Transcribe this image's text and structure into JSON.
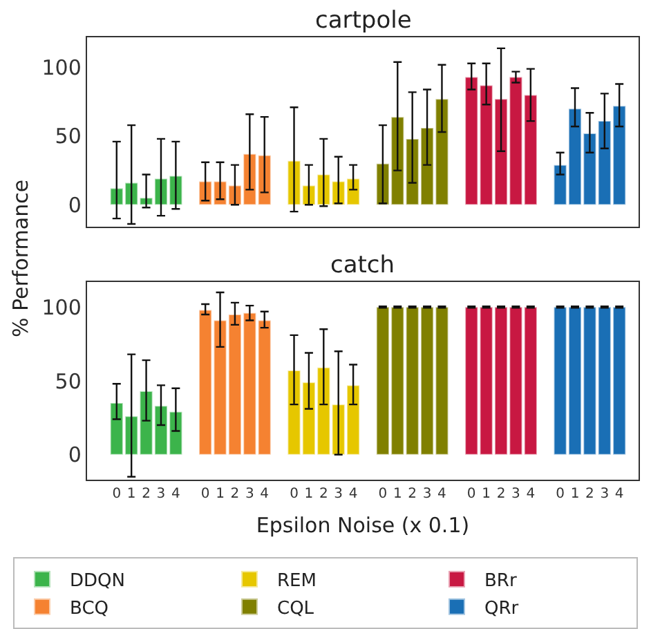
{
  "chart_data": [
    {
      "type": "bar",
      "title": "cartpole",
      "ylabel": "% Performance",
      "tick_labels": "y",
      "ylim": [
        -16,
        122
      ],
      "yticks": [
        0,
        50,
        100
      ],
      "categories": [
        "0",
        "1",
        "2",
        "3",
        "4",
        null,
        "0",
        "1",
        "2",
        "3",
        "4",
        null,
        "0",
        "1",
        "2",
        "3",
        "4",
        null,
        "0",
        "1",
        "2",
        "3",
        "4",
        null,
        "0",
        "1",
        "2",
        "3",
        "4",
        null,
        "0",
        "1",
        "2",
        "3",
        "4"
      ],
      "series": [
        {
          "color": "#3cb44b",
          "values": [
            12,
            16,
            5,
            19,
            21,
            null,
            null,
            null,
            null,
            null,
            null,
            null,
            null,
            null,
            null,
            null,
            null,
            null,
            null,
            null,
            null,
            null,
            null,
            null,
            null,
            null,
            null,
            null,
            null,
            null,
            null,
            null,
            null,
            null,
            null
          ],
          "errors": [
            [
              -10,
              46
            ],
            [
              -14,
              58
            ],
            [
              -2,
              22
            ],
            [
              -8,
              48
            ],
            [
              -3,
              46
            ],
            null,
            null,
            null,
            null,
            null,
            null,
            null,
            null,
            null,
            null,
            null,
            null,
            null,
            null,
            null,
            null,
            null,
            null,
            null,
            null,
            null,
            null,
            null,
            null,
            null,
            null,
            null,
            null,
            null,
            null
          ]
        },
        {
          "color": "#f58231",
          "values": [
            null,
            null,
            null,
            null,
            null,
            null,
            17,
            17,
            14,
            37,
            36,
            null,
            null,
            null,
            null,
            null,
            null,
            null,
            null,
            null,
            null,
            null,
            null,
            null,
            null,
            null,
            null,
            null,
            null,
            null,
            null,
            null,
            null,
            null,
            null
          ],
          "errors": [
            null,
            null,
            null,
            null,
            null,
            null,
            [
              3,
              31
            ],
            [
              4,
              31
            ],
            [
              0,
              29
            ],
            [
              11,
              66
            ],
            [
              9,
              64
            ],
            null,
            null,
            null,
            null,
            null,
            null,
            null,
            null,
            null,
            null,
            null,
            null,
            null,
            null,
            null,
            null,
            null,
            null,
            null,
            null,
            null,
            null,
            null,
            null
          ]
        },
        {
          "color": "#e6c700",
          "values": [
            null,
            null,
            null,
            null,
            null,
            null,
            null,
            null,
            null,
            null,
            null,
            null,
            32,
            14,
            22,
            17,
            19,
            null,
            null,
            null,
            null,
            null,
            null,
            null,
            null,
            null,
            null,
            null,
            null,
            null,
            null,
            null,
            null,
            null,
            null
          ],
          "errors": [
            null,
            null,
            null,
            null,
            null,
            null,
            null,
            null,
            null,
            null,
            null,
            null,
            [
              -5,
              71
            ],
            [
              0,
              29
            ],
            [
              -1,
              48
            ],
            [
              1,
              35
            ],
            [
              11,
              29
            ],
            null,
            null,
            null,
            null,
            null,
            null,
            null,
            null,
            null,
            null,
            null,
            null,
            null,
            null,
            null,
            null,
            null,
            null
          ]
        },
        {
          "color": "#808000",
          "values": [
            null,
            null,
            null,
            null,
            null,
            null,
            null,
            null,
            null,
            null,
            null,
            null,
            null,
            null,
            null,
            null,
            null,
            null,
            30,
            64,
            48,
            56,
            77,
            null,
            null,
            null,
            null,
            null,
            null,
            null,
            null,
            null,
            null,
            null,
            null
          ],
          "errors": [
            null,
            null,
            null,
            null,
            null,
            null,
            null,
            null,
            null,
            null,
            null,
            null,
            null,
            null,
            null,
            null,
            null,
            null,
            [
              1,
              58
            ],
            [
              25,
              104
            ],
            [
              16,
              82
            ],
            [
              29,
              84
            ],
            [
              53,
              102
            ],
            null,
            null,
            null,
            null,
            null,
            null,
            null,
            null,
            null,
            null,
            null,
            null
          ]
        },
        {
          "color": "#c81842",
          "values": [
            null,
            null,
            null,
            null,
            null,
            null,
            null,
            null,
            null,
            null,
            null,
            null,
            null,
            null,
            null,
            null,
            null,
            null,
            null,
            null,
            null,
            null,
            null,
            null,
            93,
            87,
            77,
            93,
            80,
            null,
            null,
            null,
            null,
            null,
            null
          ],
          "errors": [
            null,
            null,
            null,
            null,
            null,
            null,
            null,
            null,
            null,
            null,
            null,
            null,
            null,
            null,
            null,
            null,
            null,
            null,
            null,
            null,
            null,
            null,
            null,
            null,
            [
              84,
              103
            ],
            [
              73,
              103
            ],
            [
              39,
              114
            ],
            [
              89,
              97
            ],
            [
              61,
              99
            ],
            null,
            null,
            null,
            null,
            null,
            null
          ]
        },
        {
          "color": "#1a6fb5",
          "values": [
            null,
            null,
            null,
            null,
            null,
            null,
            null,
            null,
            null,
            null,
            null,
            null,
            null,
            null,
            null,
            null,
            null,
            null,
            null,
            null,
            null,
            null,
            null,
            null,
            null,
            null,
            null,
            null,
            null,
            null,
            29,
            70,
            52,
            61,
            72
          ],
          "errors": [
            null,
            null,
            null,
            null,
            null,
            null,
            null,
            null,
            null,
            null,
            null,
            null,
            null,
            null,
            null,
            null,
            null,
            null,
            null,
            null,
            null,
            null,
            null,
            null,
            null,
            null,
            null,
            null,
            null,
            null,
            [
              22,
              38
            ],
            [
              57,
              85
            ],
            [
              38,
              67
            ],
            [
              41,
              81
            ],
            [
              57,
              88
            ]
          ]
        }
      ]
    },
    {
      "type": "bar",
      "title": "catch",
      "xlabel": "Epsilon Noise (x 0.1)",
      "legend": "bottom",
      "ylim": [
        -17,
        117
      ],
      "yticks": [
        0,
        50,
        100
      ],
      "categories": [
        "0",
        "1",
        "2",
        "3",
        "4",
        null,
        "0",
        "1",
        "2",
        "3",
        "4",
        null,
        "0",
        "1",
        "2",
        "3",
        "4",
        null,
        "0",
        "1",
        "2",
        "3",
        "4",
        null,
        "0",
        "1",
        "2",
        "3",
        "4",
        null,
        "0",
        "1",
        "2",
        "3",
        "4"
      ],
      "series": [
        {
          "name": "DDQN",
          "color": "#3cb44b",
          "values": [
            35,
            26,
            43,
            33,
            29,
            null,
            null,
            null,
            null,
            null,
            null,
            null,
            null,
            null,
            null,
            null,
            null,
            null,
            null,
            null,
            null,
            null,
            null,
            null,
            null,
            null,
            null,
            null,
            null,
            null,
            null,
            null,
            null,
            null,
            null
          ],
          "errors": [
            [
              24,
              48
            ],
            [
              -15,
              68
            ],
            [
              23,
              64
            ],
            [
              20,
              47
            ],
            [
              16,
              45
            ],
            null,
            null,
            null,
            null,
            null,
            null,
            null,
            null,
            null,
            null,
            null,
            null,
            null,
            null,
            null,
            null,
            null,
            null,
            null,
            null,
            null,
            null,
            null,
            null,
            null,
            null,
            null,
            null,
            null,
            null
          ]
        },
        {
          "name": "BCQ",
          "color": "#f58231",
          "values": [
            null,
            null,
            null,
            null,
            null,
            null,
            98,
            91,
            95,
            96,
            91,
            null,
            null,
            null,
            null,
            null,
            null,
            null,
            null,
            null,
            null,
            null,
            null,
            null,
            null,
            null,
            null,
            null,
            null,
            null,
            null,
            null,
            null,
            null,
            null
          ],
          "errors": [
            null,
            null,
            null,
            null,
            null,
            null,
            [
              95,
              102
            ],
            [
              73,
              110
            ],
            [
              88,
              103
            ],
            [
              91,
              101
            ],
            [
              86,
              97
            ],
            null,
            null,
            null,
            null,
            null,
            null,
            null,
            null,
            null,
            null,
            null,
            null,
            null,
            null,
            null,
            null,
            null,
            null,
            null,
            null,
            null,
            null,
            null,
            null
          ]
        },
        {
          "name": "REM",
          "color": "#e6c700",
          "values": [
            null,
            null,
            null,
            null,
            null,
            null,
            null,
            null,
            null,
            null,
            null,
            null,
            57,
            49,
            59,
            34,
            47,
            null,
            null,
            null,
            null,
            null,
            null,
            null,
            null,
            null,
            null,
            null,
            null,
            null,
            null,
            null,
            null,
            null,
            null
          ],
          "errors": [
            null,
            null,
            null,
            null,
            null,
            null,
            null,
            null,
            null,
            null,
            null,
            null,
            [
              34,
              81
            ],
            [
              31,
              69
            ],
            [
              34,
              85
            ],
            [
              0,
              70
            ],
            [
              34,
              61
            ],
            null,
            null,
            null,
            null,
            null,
            null,
            null,
            null,
            null,
            null,
            null,
            null,
            null,
            null,
            null,
            null,
            null,
            null
          ]
        },
        {
          "name": "CQL",
          "color": "#808000",
          "values": [
            null,
            null,
            null,
            null,
            null,
            null,
            null,
            null,
            null,
            null,
            null,
            null,
            null,
            null,
            null,
            null,
            null,
            null,
            100,
            100,
            100,
            100,
            100,
            null,
            null,
            null,
            null,
            null,
            null,
            null,
            null,
            null,
            null,
            null,
            null
          ],
          "errors": [
            null,
            null,
            null,
            null,
            null,
            null,
            null,
            null,
            null,
            null,
            null,
            null,
            null,
            null,
            null,
            null,
            null,
            null,
            0.5,
            0.5,
            0.5,
            0.5,
            0.5,
            null,
            null,
            null,
            null,
            null,
            null,
            null,
            null,
            null,
            null,
            null,
            null
          ]
        },
        {
          "name": "BRr",
          "color": "#c81842",
          "values": [
            null,
            null,
            null,
            null,
            null,
            null,
            null,
            null,
            null,
            null,
            null,
            null,
            null,
            null,
            null,
            null,
            null,
            null,
            null,
            null,
            null,
            null,
            null,
            null,
            100,
            100,
            100,
            100,
            100,
            null,
            null,
            null,
            null,
            null,
            null
          ],
          "errors": [
            null,
            null,
            null,
            null,
            null,
            null,
            null,
            null,
            null,
            null,
            null,
            null,
            null,
            null,
            null,
            null,
            null,
            null,
            null,
            null,
            null,
            null,
            null,
            null,
            0.5,
            0.5,
            0.5,
            0.5,
            0.5,
            null,
            null,
            null,
            null,
            null,
            null
          ]
        },
        {
          "name": "QRr",
          "color": "#1a6fb5",
          "values": [
            null,
            null,
            null,
            null,
            null,
            null,
            null,
            null,
            null,
            null,
            null,
            null,
            null,
            null,
            null,
            null,
            null,
            null,
            null,
            null,
            null,
            null,
            null,
            null,
            null,
            null,
            null,
            null,
            null,
            null,
            100,
            100,
            100,
            100,
            100
          ],
          "errors": [
            null,
            null,
            null,
            null,
            null,
            null,
            null,
            null,
            null,
            null,
            null,
            null,
            null,
            null,
            null,
            null,
            null,
            null,
            null,
            null,
            null,
            null,
            null,
            null,
            null,
            null,
            null,
            null,
            null,
            null,
            0.5,
            0.5,
            0.5,
            0.5,
            0.5
          ]
        }
      ]
    }
  ]
}
